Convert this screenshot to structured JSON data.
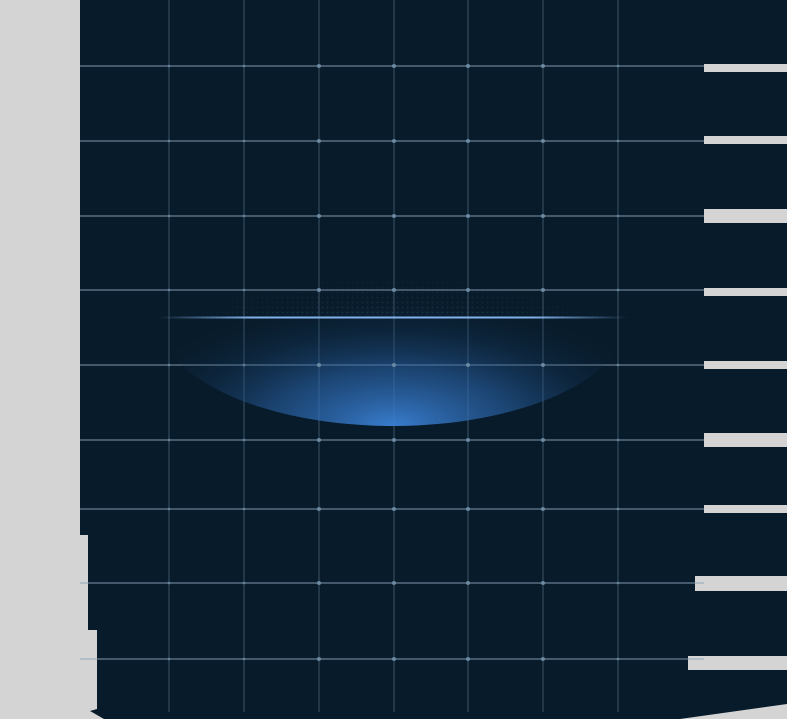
{
  "scene": {
    "description_free": true,
    "colors": {
      "page_background": "#d4d4d4",
      "panel": "#081b2a",
      "grid_line": "#3b5366",
      "grid_line_bright": "#8aa4b8",
      "node_dot": "#6f8ea6",
      "glow_core": "#3b82d6",
      "glow_edge": "#8ec2ff"
    },
    "grid": {
      "columns": 8,
      "rows": 10
    },
    "glow": {
      "present": true,
      "pattern": "dot-matrix"
    }
  }
}
